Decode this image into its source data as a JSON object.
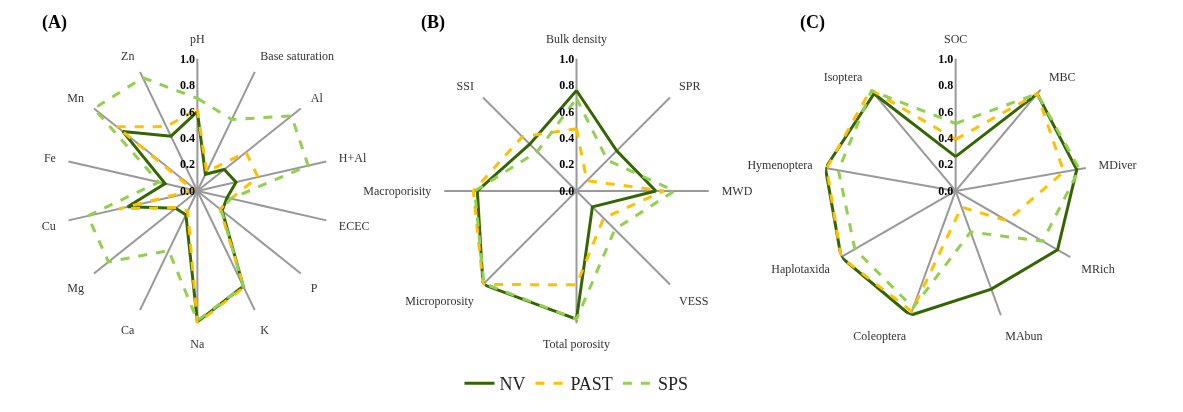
{
  "chart_data": [
    {
      "type": "radar",
      "title": "(A)",
      "categories": [
        "pH",
        "Base saturation",
        "Al",
        "H+Al",
        "ECEC",
        "P",
        "K",
        "Na",
        "Ca",
        "Mg",
        "Cu",
        "Fe",
        "Mn",
        "Zn"
      ],
      "ylim": [
        0,
        1
      ],
      "yticks": [
        {
          "value": 0,
          "label": "0.0"
        },
        {
          "value": 0.2,
          "label": "0.2"
        },
        {
          "value": 0.4,
          "label": "0.4"
        },
        {
          "value": 0.6,
          "label": "0.6"
        },
        {
          "value": 0.8,
          "label": "0.8"
        },
        {
          "value": 1,
          "label": "1.0"
        }
      ],
      "grid": "x",
      "marker": "none",
      "legend": "bottom",
      "series": [
        {
          "name": "NV",
          "color": "#336600",
          "line_style": "solid",
          "values": [
            0.6,
            0.14,
            0.26,
            0.3,
            0.23,
            0.24,
            0.8,
            0.99,
            0.2,
            0.21,
            0.54,
            0.25,
            0.72,
            0.46
          ]
        },
        {
          "name": "PAST",
          "color": "#ffc000",
          "line_style": "dashed",
          "values": [
            0.62,
            0.16,
            0.47,
            0.47,
            0.26,
            0.22,
            0.81,
            1.0,
            0.17,
            0.2,
            0.61,
            0.03,
            0.78,
            0.54
          ]
        },
        {
          "name": "SPS",
          "color": "#92d050",
          "line_style": "dashed",
          "values": [
            0.7,
            0.6,
            0.91,
            0.86,
            0.26,
            0.23,
            0.8,
            0.98,
            0.5,
            0.86,
            0.85,
            0.3,
            1.0,
            0.95
          ]
        }
      ]
    },
    {
      "type": "radar",
      "title": "(B)",
      "categories": [
        "Bulk density",
        "SPR",
        "MWD",
        "VESS",
        "Total porosity",
        "Microporosity",
        "Macroporisity",
        "SSI"
      ],
      "ylim": [
        0,
        1
      ],
      "yticks": [
        {
          "value": 0,
          "label": "0.0"
        },
        {
          "value": 0.2,
          "label": "0.2"
        },
        {
          "value": 0.4,
          "label": "0.4"
        },
        {
          "value": 0.6,
          "label": "0.6"
        },
        {
          "value": 0.8,
          "label": "0.8"
        },
        {
          "value": 1,
          "label": "1.0"
        }
      ],
      "grid": "x",
      "marker": "none",
      "series": [
        {
          "name": "NV",
          "color": "#336600",
          "line_style": "solid",
          "values": [
            0.76,
            0.43,
            0.6,
            0.17,
            0.97,
            1.0,
            0.75,
            0.5
          ]
        },
        {
          "name": "PAST",
          "color": "#ffc000",
          "line_style": "dashed",
          "values": [
            0.47,
            0.11,
            0.66,
            0.29,
            0.71,
            1.0,
            0.78,
            0.58
          ]
        },
        {
          "name": "SPS",
          "color": "#92d050",
          "line_style": "dashed",
          "values": [
            0.7,
            0.33,
            0.74,
            0.41,
            0.97,
            0.99,
            0.77,
            0.42
          ]
        }
      ]
    },
    {
      "type": "radar",
      "title": "(C)",
      "categories": [
        "SOC",
        "MBC",
        "MDiver",
        "MRich",
        "MAbun",
        "Coleoptera",
        "Haplotaxida",
        "Hymenoptera",
        "Isoptera"
      ],
      "ylim": [
        0,
        1
      ],
      "yticks": [
        {
          "value": 0,
          "label": "0.0"
        },
        {
          "value": 0.2,
          "label": "0.2"
        },
        {
          "value": 0.4,
          "label": "0.4"
        },
        {
          "value": 0.6,
          "label": "0.6"
        },
        {
          "value": 0.8,
          "label": "0.8"
        },
        {
          "value": 1,
          "label": "1.0"
        }
      ],
      "grid": "x",
      "marker": "none",
      "series": [
        {
          "name": "NV",
          "color": "#336600",
          "line_style": "solid",
          "values": [
            0.26,
            0.96,
            0.93,
            0.89,
            0.79,
            1.0,
            1.0,
            1.0,
            0.96
          ]
        },
        {
          "name": "PAST",
          "color": "#ffc000",
          "line_style": "dashed",
          "values": [
            0.39,
            0.96,
            0.83,
            0.45,
            0.13,
            0.97,
            1.0,
            0.99,
            1.0
          ]
        },
        {
          "name": "SPS",
          "color": "#92d050",
          "line_style": "dashed",
          "values": [
            0.51,
            0.96,
            0.95,
            0.76,
            0.33,
            0.94,
            0.88,
            0.9,
            0.99
          ]
        }
      ]
    }
  ]
}
